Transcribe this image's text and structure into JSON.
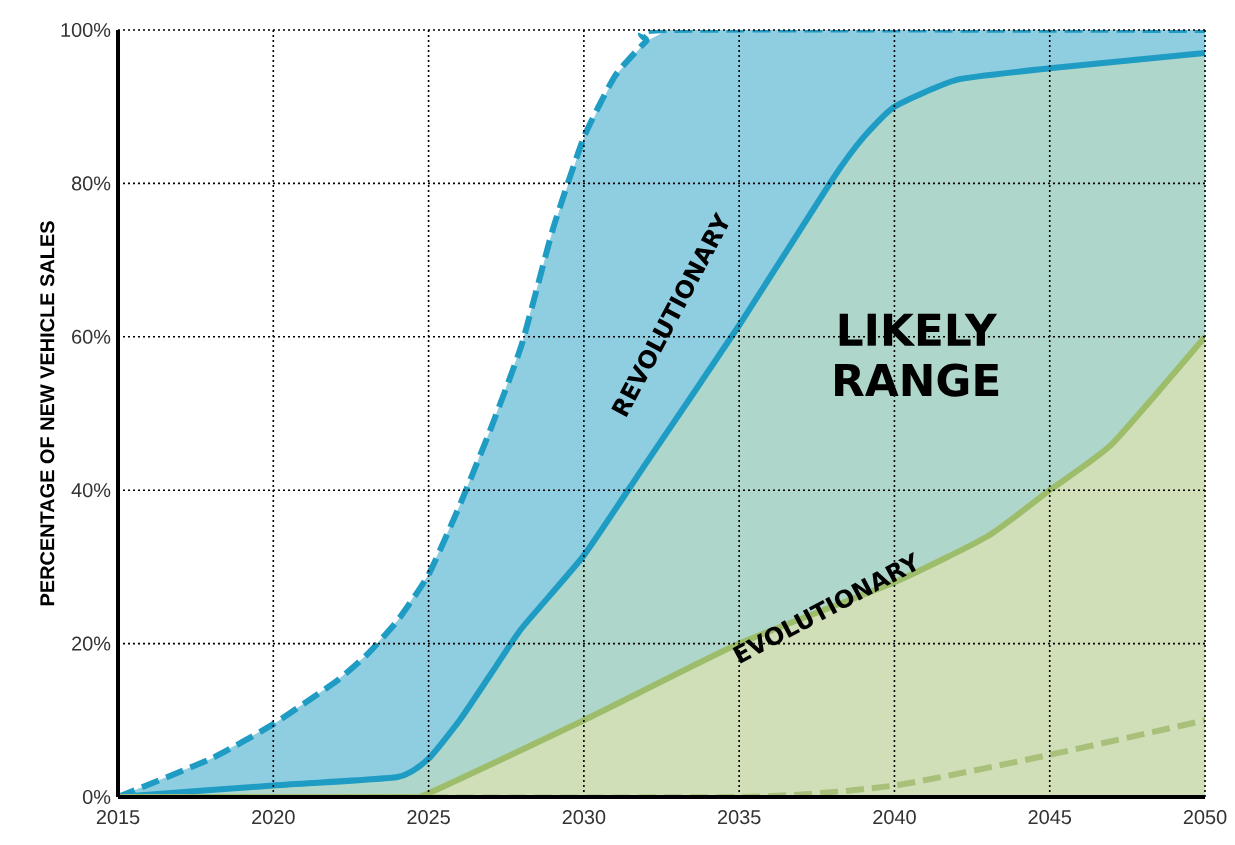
{
  "chart_data": {
    "type": "area",
    "ylabel": "PERCENTAGE OF NEW VEHICLE SALES",
    "xlim": [
      2015,
      2050
    ],
    "xticks": [
      2015,
      2020,
      2025,
      2030,
      2035,
      2040,
      2045,
      2050
    ],
    "ylim": [
      0,
      100
    ],
    "yticks": [
      {
        "value": 0,
        "label": "0%"
      },
      {
        "value": 20,
        "label": "20%"
      },
      {
        "value": 40,
        "label": "40%"
      },
      {
        "value": 60,
        "label": "60%"
      },
      {
        "value": 80,
        "label": "80%"
      },
      {
        "value": 100,
        "label": "100%"
      }
    ],
    "grid": true,
    "series": [
      {
        "color": "#1f9cc4",
        "line_style": "dashed",
        "x": [
          2015,
          2018,
          2020,
          2022,
          2023,
          2024,
          2025,
          2026,
          2027,
          2028,
          2029,
          2030,
          2031,
          2032,
          2032.7,
          2050
        ],
        "values": [
          0,
          5,
          9.5,
          15,
          18.5,
          23,
          29,
          38,
          48,
          59,
          74,
          86,
          94,
          98.5,
          100,
          100
        ]
      },
      {
        "color": "#1f9cc4",
        "line_style": "solid",
        "x": [
          2015,
          2020,
          2024,
          2025,
          2026,
          2027,
          2028,
          2030,
          2032,
          2035,
          2038,
          2039,
          2040,
          2042,
          2045,
          2050
        ],
        "values": [
          0,
          1.5,
          2.6,
          5,
          10,
          16,
          22,
          31.5,
          43.5,
          61.5,
          80.5,
          86,
          90,
          93.5,
          95,
          97
        ]
      },
      {
        "color": "#9dbd6a",
        "line_style": "solid",
        "x": [
          2015,
          2024,
          2025,
          2030,
          2035,
          2040,
          2043,
          2045,
          2047,
          2050
        ],
        "values": [
          0,
          0,
          0.5,
          10,
          20,
          28,
          34,
          40,
          46,
          60
        ]
      },
      {
        "type": "line",
        "color": "#a8c07a",
        "line_style": "dashed",
        "x": [
          2015,
          2035,
          2040,
          2045,
          2050
        ],
        "values": [
          0,
          0,
          1.5,
          5.5,
          10
        ]
      }
    ],
    "annotations": [
      "REVOLUTIONARY",
      "LIKELY RANGE",
      "EVOLUTIONARY"
    ]
  }
}
